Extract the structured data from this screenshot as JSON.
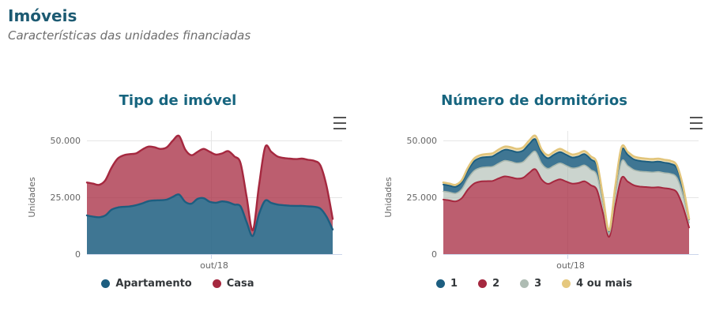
{
  "header": {
    "title": "Imóveis",
    "subtitle": "Características das unidades financiadas"
  },
  "colors": {
    "page_title": "#1c5a72",
    "chart_title": "#17657f",
    "axis_text": "#666666",
    "legend_text": "#33373a",
    "gridline": "#e6e6e6",
    "axis_line": "#ccd6eb",
    "menu_icon": "#555555",
    "blue": "#1d5e80",
    "red": "#a5283f",
    "gray": "#a9b8ae",
    "yellow": "#e2c57b"
  },
  "chart_data": [
    {
      "type": "area",
      "stacking": "normal",
      "title": "Tipo de imóvel",
      "ylabel": "Unidades",
      "ylim": [
        0,
        55000
      ],
      "grid": true,
      "legend_position": "bottom",
      "yticks": [
        {
          "value": 0,
          "label": "0"
        },
        {
          "value": 25000,
          "label": "25.000"
        },
        {
          "value": 50000,
          "label": "50.000"
        }
      ],
      "xtick": {
        "label": "out/18",
        "frac": 0.505
      },
      "legend": [
        {
          "label": "Apartamento",
          "color": "#1d5e80"
        },
        {
          "label": "Casa",
          "color": "#a5283f"
        }
      ],
      "series": [
        {
          "name": "Apartamento",
          "line": "#1d5e80",
          "fill": "rgba(29,94,128,0.85)",
          "lw": 2.4,
          "values": [
            17000,
            16500,
            16200,
            17000,
            19500,
            20500,
            20800,
            21000,
            21500,
            22300,
            23300,
            23600,
            23700,
            24000,
            25200,
            26200,
            23000,
            22200,
            24300,
            24600,
            23000,
            22600,
            23200,
            22800,
            21800,
            21000,
            14000,
            8000,
            17500,
            23500,
            22500,
            21800,
            21500,
            21300,
            21200,
            21200,
            21000,
            20800,
            20000,
            16500,
            10800
          ]
        },
        {
          "name": "Casa",
          "line": "#a5283f",
          "fill": "rgba(165,40,63,0.75)",
          "lw": 2.4,
          "values": [
            14500,
            14500,
            14300,
            15500,
            18500,
            21500,
            22700,
            23000,
            22800,
            23700,
            24000,
            23400,
            22600,
            23000,
            24800,
            25800,
            23000,
            21300,
            20700,
            21700,
            22000,
            21200,
            21100,
            22500,
            21200,
            19000,
            11000,
            2500,
            12500,
            23500,
            22500,
            21200,
            20800,
            20700,
            20600,
            20800,
            20500,
            20200,
            19000,
            13500,
            4700
          ]
        }
      ]
    },
    {
      "type": "area",
      "stacking": "normal",
      "title": "Número de dormitórios",
      "ylabel": "Unidades",
      "ylim": [
        0,
        55000
      ],
      "grid": true,
      "legend_position": "bottom",
      "yticks": [
        {
          "value": 0,
          "label": "0"
        },
        {
          "value": 25000,
          "label": "25.000"
        },
        {
          "value": 50000,
          "label": "50.000"
        }
      ],
      "xtick": {
        "label": "out/18",
        "frac": 0.505
      },
      "legend": [
        {
          "label": "1",
          "color": "#1d5e80"
        },
        {
          "label": "2",
          "color": "#a5283f"
        },
        {
          "label": "3",
          "color": "#aebcb3"
        },
        {
          "label": "4 ou mais",
          "color": "#e5c87e"
        }
      ],
      "series": [
        {
          "name": "2",
          "line": "#a5283f",
          "fill": "rgba(165,40,63,0.75)",
          "lw": 2,
          "values": [
            24000,
            23600,
            23200,
            24600,
            28400,
            31000,
            31900,
            32100,
            32200,
            33300,
            34200,
            33800,
            33200,
            33600,
            35800,
            37300,
            32800,
            30900,
            32000,
            32900,
            31900,
            31000,
            31300,
            32000,
            30300,
            28200,
            17800,
            7600,
            21500,
            33500,
            31900,
            30300,
            29700,
            29500,
            29300,
            29400,
            29000,
            28600,
            27200,
            20900,
            11700
          ]
        },
        {
          "name": "3",
          "line": "#a9b8ae",
          "fill": "rgba(169,184,174,0.6)",
          "lw": 1.6,
          "values": [
            3600,
            3600,
            3500,
            3900,
            4800,
            5600,
            6000,
            6200,
            6300,
            6600,
            6900,
            6900,
            6800,
            7000,
            7500,
            7800,
            7000,
            6700,
            6900,
            7100,
            7000,
            6800,
            6900,
            7100,
            6800,
            6300,
            3800,
            1500,
            4500,
            7200,
            7000,
            6800,
            6700,
            6700,
            6700,
            6800,
            6700,
            6700,
            6400,
            5000,
            2100
          ]
        },
        {
          "name": "1",
          "line": "#1d5e80",
          "fill": "rgba(29,94,128,0.85)",
          "lw": 2,
          "values": [
            3000,
            2900,
            2900,
            3100,
            3700,
            4200,
            4400,
            4400,
            4500,
            4700,
            4800,
            4900,
            4900,
            5000,
            5200,
            5400,
            4900,
            4600,
            4800,
            4900,
            4800,
            4700,
            4800,
            4900,
            4600,
            4300,
            2700,
            1100,
            3200,
            5000,
            4800,
            4600,
            4600,
            4500,
            4500,
            4500,
            4500,
            4400,
            4200,
            3200,
            1400
          ]
        },
        {
          "name": "4 ou mais",
          "line": "#e2c57b",
          "fill": "rgba(226,197,123,0.55)",
          "lw": 2.6,
          "values": [
            900,
            900,
            900,
            900,
            1100,
            1200,
            1200,
            1300,
            1300,
            1400,
            1400,
            1400,
            1400,
            1400,
            1500,
            1500,
            1300,
            1300,
            1300,
            1400,
            1300,
            1300,
            1300,
            1300,
            1300,
            1200,
            700,
            300,
            800,
            1300,
            1300,
            1300,
            1300,
            1300,
            1300,
            1300,
            1300,
            1300,
            1200,
            900,
            300
          ]
        }
      ]
    }
  ]
}
